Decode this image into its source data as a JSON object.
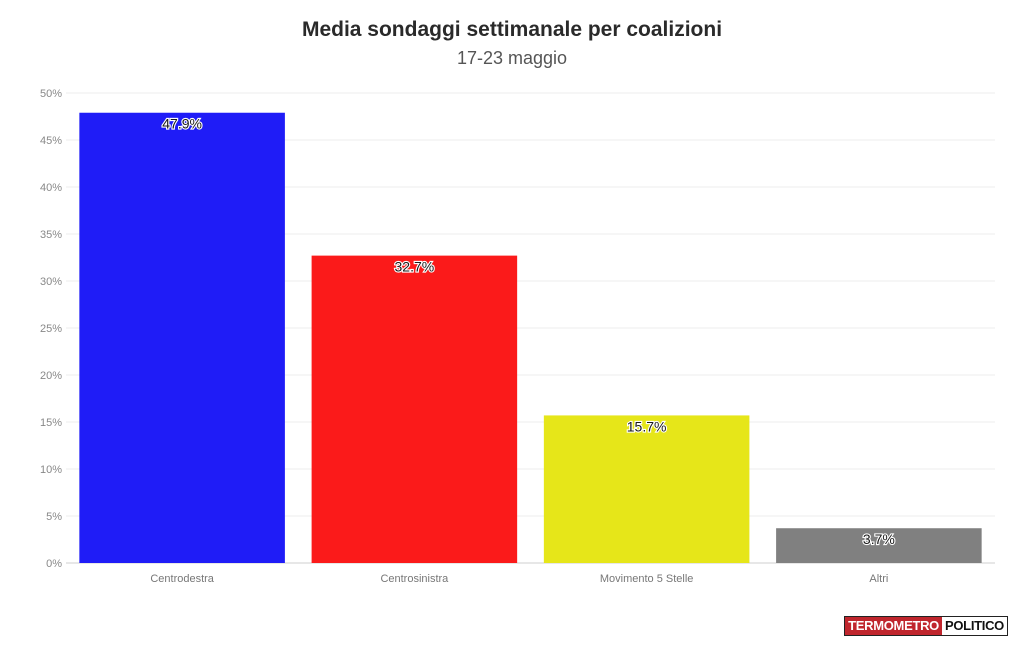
{
  "chart_data": {
    "type": "bar",
    "title": "Media sondaggi settimanale per coalizioni",
    "subtitle": "17-23 maggio",
    "categories": [
      "Centrodestra",
      "Centrosinistra",
      "Movimento 5 Stelle",
      "Altri"
    ],
    "values": [
      47.9,
      32.7,
      15.7,
      3.7
    ],
    "value_labels": [
      "47.9%",
      "32.7%",
      "15.7%",
      "3.7%"
    ],
    "colors": [
      "#1f1cf7",
      "#fb1a1a",
      "#e6e619",
      "#808080"
    ],
    "ylim": [
      0,
      50
    ],
    "yticks": [
      0,
      5,
      10,
      15,
      20,
      25,
      30,
      35,
      40,
      45,
      50
    ],
    "ytick_labels": [
      "0%",
      "5%",
      "10%",
      "15%",
      "20%",
      "25%",
      "30%",
      "35%",
      "40%",
      "45%",
      "50%"
    ],
    "grid": true,
    "xlabel": "",
    "ylabel": ""
  },
  "logo": {
    "part1": "TERMOMETRO",
    "part2": "POLITICO"
  }
}
